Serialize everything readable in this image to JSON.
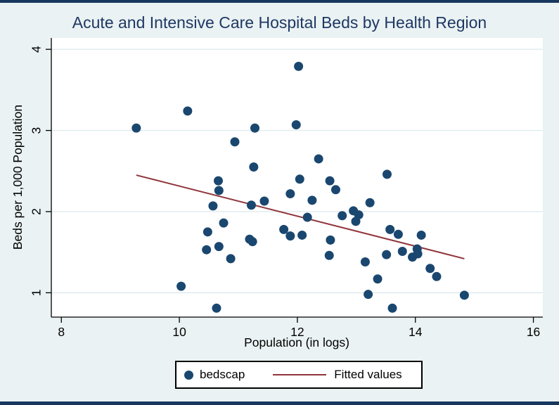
{
  "figure": {
    "colors": {
      "background": "#eaf2f3",
      "plot_background": "#ffffff",
      "gridline": "#dfeaee",
      "marker": "#1a476f",
      "fit_line": "#90353b",
      "title_text": "#1f3864",
      "edge_bars": "#17375e",
      "axis": "#000000",
      "legend_background": "#ffffff",
      "legend_border": "#000000"
    }
  },
  "chart_data": {
    "type": "scatter",
    "title": "Acute and Intensive Care Hospital Beds by Health Region",
    "xlabel": "Population (in logs)",
    "ylabel": "Beds per 1,000 Population",
    "xlim": [
      7.83,
      16.16
    ],
    "ylim": [
      0.7,
      4.14
    ],
    "xticks": [
      8,
      10,
      12,
      14,
      16
    ],
    "yticks": [
      1,
      2,
      3,
      4
    ],
    "grid": "horizontal-only",
    "legend": {
      "position": "bottom-center",
      "entries": [
        {
          "label": "bedscap",
          "type": "marker"
        },
        {
          "label": "Fitted values",
          "type": "line"
        }
      ]
    },
    "series": [
      {
        "name": "bedscap",
        "type": "scatter",
        "points": [
          [
            9.27,
            3.03
          ],
          [
            10.14,
            3.24
          ],
          [
            10.03,
            1.08
          ],
          [
            10.57,
            2.07
          ],
          [
            10.66,
            2.38
          ],
          [
            10.67,
            2.26
          ],
          [
            10.48,
            1.75
          ],
          [
            10.46,
            1.53
          ],
          [
            10.67,
            1.57
          ],
          [
            10.63,
            0.81
          ],
          [
            10.75,
            1.86
          ],
          [
            10.87,
            1.42
          ],
          [
            10.94,
            2.86
          ],
          [
            11.22,
            2.08
          ],
          [
            11.26,
            2.55
          ],
          [
            11.28,
            3.03
          ],
          [
            11.19,
            1.66
          ],
          [
            11.24,
            1.63
          ],
          [
            11.44,
            2.13
          ],
          [
            11.77,
            1.78
          ],
          [
            11.88,
            1.7
          ],
          [
            11.88,
            2.22
          ],
          [
            12.02,
            3.79
          ],
          [
            11.98,
            3.07
          ],
          [
            12.04,
            2.4
          ],
          [
            12.08,
            1.71
          ],
          [
            12.17,
            1.93
          ],
          [
            12.25,
            2.14
          ],
          [
            12.36,
            2.65
          ],
          [
            12.55,
            2.38
          ],
          [
            12.65,
            2.27
          ],
          [
            12.56,
            1.65
          ],
          [
            12.54,
            1.46
          ],
          [
            12.76,
            1.95
          ],
          [
            12.95,
            2.01
          ],
          [
            13.04,
            1.96
          ],
          [
            12.99,
            1.88
          ],
          [
            13.23,
            2.11
          ],
          [
            13.15,
            1.38
          ],
          [
            13.2,
            0.98
          ],
          [
            13.36,
            1.17
          ],
          [
            13.52,
            2.46
          ],
          [
            13.57,
            1.78
          ],
          [
            13.71,
            1.72
          ],
          [
            13.51,
            1.47
          ],
          [
            13.78,
            1.51
          ],
          [
            13.95,
            1.44
          ],
          [
            14.03,
            1.54
          ],
          [
            14.04,
            1.48
          ],
          [
            14.1,
            1.71
          ],
          [
            14.25,
            1.3
          ],
          [
            14.36,
            1.2
          ],
          [
            14.83,
            0.97
          ],
          [
            13.61,
            0.81
          ]
        ]
      },
      {
        "name": "Fitted values",
        "type": "line",
        "points": [
          [
            9.27,
            2.45
          ],
          [
            14.83,
            1.42
          ]
        ]
      }
    ]
  }
}
